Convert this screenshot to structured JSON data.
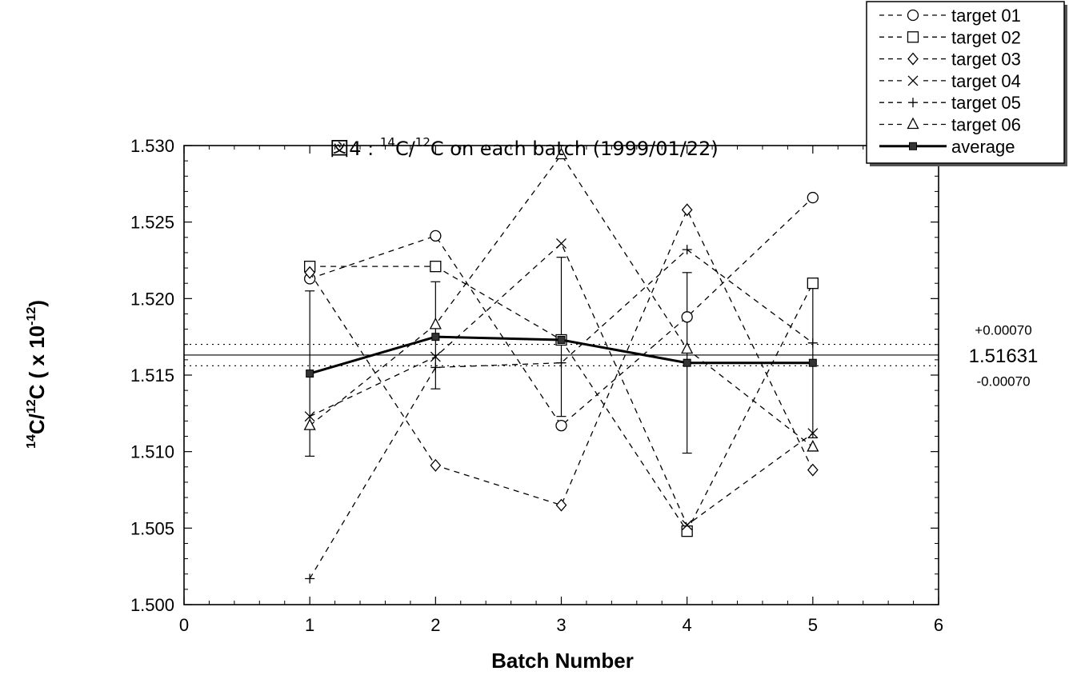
{
  "chart_data": {
    "type": "line",
    "title": {
      "prefix": "図4 : ",
      "sup1": "14",
      "mid": "C/",
      "sup2": "12",
      "suffix": "C  on  each  batch  (1999/01/22)"
    },
    "xlabel": "Batch  Number",
    "ylabel": {
      "sup1": "14",
      "mid": "C/",
      "sup2": "12",
      "mid2": "C ( x 10",
      "sup3": "-12",
      "end": ")"
    },
    "xlim": [
      0,
      6
    ],
    "ylim": [
      1.5,
      1.53
    ],
    "x_ticks": [
      "0",
      "1",
      "2",
      "3",
      "4",
      "5",
      "6"
    ],
    "y_ticks": [
      "1.500",
      "1.505",
      "1.510",
      "1.515",
      "1.520",
      "1.525",
      "1.530"
    ],
    "grid": false,
    "legend_position": "top-right",
    "x": [
      1,
      2,
      3,
      4,
      5
    ],
    "series": [
      {
        "name": "target 01",
        "marker": "circle",
        "dash": true,
        "values": [
          1.5213,
          1.5241,
          1.5117,
          1.5188,
          1.5266
        ]
      },
      {
        "name": "target 02",
        "marker": "square",
        "dash": true,
        "values": [
          1.5221,
          1.5221,
          1.5173,
          1.5048,
          1.521
        ]
      },
      {
        "name": "target 03",
        "marker": "diamond",
        "dash": true,
        "values": [
          1.5217,
          1.5091,
          1.5065,
          1.5258,
          1.5088
        ]
      },
      {
        "name": "target 04",
        "marker": "x",
        "dash": true,
        "values": [
          1.5123,
          1.5162,
          1.5236,
          1.5052,
          1.5112
        ]
      },
      {
        "name": "target 05",
        "marker": "plus",
        "dash": true,
        "values": [
          1.5017,
          1.5155,
          1.5158,
          1.5232,
          1.5171
        ]
      },
      {
        "name": "target 06",
        "marker": "triangle",
        "dash": true,
        "values": [
          1.5117,
          1.5183,
          1.5294,
          1.5167,
          1.5103
        ]
      },
      {
        "name": "average",
        "marker": "filled-square",
        "dash": false,
        "values": [
          1.5151,
          1.5175,
          1.5173,
          1.5158,
          1.5158
        ]
      }
    ],
    "error_bars": [
      {
        "x": 1,
        "low": 1.5097,
        "high": 1.5205
      },
      {
        "x": 2,
        "low": 1.5141,
        "high": 1.5211
      },
      {
        "x": 3,
        "low": 1.5123,
        "high": 1.5227
      },
      {
        "x": 4,
        "low": 1.5099,
        "high": 1.5217
      },
      {
        "x": 5,
        "low": 1.5109,
        "high": 1.5207
      }
    ],
    "reference": {
      "value": 1.51631,
      "delta": 0.0007,
      "label": "1.51631",
      "upper_label": "+0.00070",
      "lower_label": "-0.00070"
    }
  }
}
